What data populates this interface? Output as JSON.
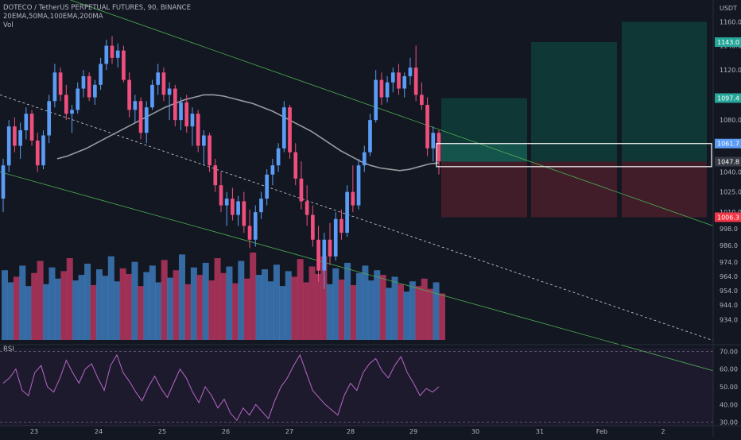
{
  "header": {
    "symbol_line": "DOTECO / TetherUS PERPETUAL FUTURES, 90, BINANCE",
    "indicators_line": "20EMA,50MA,100EMA,200MA",
    "volume_line": "Vol",
    "rsi_label": "RSI"
  },
  "price_axis": {
    "unit": "USDT",
    "ticks": [
      "1160.0",
      "1140.0",
      "1120.0",
      "1097.4",
      "1080.0",
      "1061.7",
      "1047.8",
      "1040.0",
      "1025.0",
      "1010.0",
      "1006.3",
      "998.0",
      "986.0",
      "974.0",
      "964.0",
      "954.0",
      "944.0",
      "934.0"
    ],
    "range": [
      930,
      1165
    ],
    "scale": "log"
  },
  "price_tags": [
    {
      "label": "1143.0",
      "value": 1143.0,
      "color": "#26a69a"
    },
    {
      "label": "1097.4",
      "value": 1097.4,
      "color": "#26a69a"
    },
    {
      "label": "1061.7",
      "value": 1061.7,
      "color": "#5b9cf6"
    },
    {
      "label": "1047.8",
      "value": 1047.8,
      "color": "#363a45"
    },
    {
      "label": "1006.3",
      "value": 1006.3,
      "color": "#f23645"
    }
  ],
  "rsi_axis": {
    "ticks": [
      "70.00",
      "60.00",
      "50.00",
      "40.00",
      "30.00"
    ],
    "range": [
      28,
      72
    ],
    "levels": [
      70,
      30
    ]
  },
  "time_axis": {
    "ticks": [
      "23",
      "24",
      "25",
      "26",
      "27",
      "28",
      "29",
      "30",
      "31",
      "Feb",
      "2"
    ]
  },
  "chart_data": {
    "type": "candlestick",
    "candles": [
      {
        "o": 1020,
        "h": 1050,
        "l": 1010,
        "c": 1045
      },
      {
        "o": 1045,
        "h": 1080,
        "l": 1040,
        "c": 1075
      },
      {
        "o": 1075,
        "h": 1082,
        "l": 1055,
        "c": 1060
      },
      {
        "o": 1060,
        "h": 1078,
        "l": 1050,
        "c": 1072
      },
      {
        "o": 1072,
        "h": 1090,
        "l": 1065,
        "c": 1085
      },
      {
        "o": 1085,
        "h": 1088,
        "l": 1060,
        "c": 1064
      },
      {
        "o": 1064,
        "h": 1070,
        "l": 1040,
        "c": 1045
      },
      {
        "o": 1045,
        "h": 1072,
        "l": 1042,
        "c": 1068
      },
      {
        "o": 1068,
        "h": 1100,
        "l": 1062,
        "c": 1095
      },
      {
        "o": 1095,
        "h": 1125,
        "l": 1090,
        "c": 1118
      },
      {
        "o": 1118,
        "h": 1122,
        "l": 1095,
        "c": 1100
      },
      {
        "o": 1100,
        "h": 1108,
        "l": 1080,
        "c": 1085
      },
      {
        "o": 1085,
        "h": 1092,
        "l": 1070,
        "c": 1088
      },
      {
        "o": 1088,
        "h": 1110,
        "l": 1085,
        "c": 1105
      },
      {
        "o": 1105,
        "h": 1120,
        "l": 1098,
        "c": 1115
      },
      {
        "o": 1115,
        "h": 1118,
        "l": 1095,
        "c": 1098
      },
      {
        "o": 1098,
        "h": 1112,
        "l": 1092,
        "c": 1108
      },
      {
        "o": 1108,
        "h": 1130,
        "l": 1104,
        "c": 1125
      },
      {
        "o": 1125,
        "h": 1145,
        "l": 1120,
        "c": 1140
      },
      {
        "o": 1140,
        "h": 1148,
        "l": 1125,
        "c": 1130
      },
      {
        "o": 1130,
        "h": 1142,
        "l": 1122,
        "c": 1136
      },
      {
        "o": 1136,
        "h": 1140,
        "l": 1110,
        "c": 1112
      },
      {
        "o": 1112,
        "h": 1118,
        "l": 1082,
        "c": 1088
      },
      {
        "o": 1088,
        "h": 1100,
        "l": 1078,
        "c": 1095
      },
      {
        "o": 1095,
        "h": 1098,
        "l": 1065,
        "c": 1070
      },
      {
        "o": 1070,
        "h": 1095,
        "l": 1062,
        "c": 1090
      },
      {
        "o": 1090,
        "h": 1112,
        "l": 1088,
        "c": 1108
      },
      {
        "o": 1108,
        "h": 1125,
        "l": 1100,
        "c": 1118
      },
      {
        "o": 1118,
        "h": 1122,
        "l": 1095,
        "c": 1100
      },
      {
        "o": 1100,
        "h": 1110,
        "l": 1080,
        "c": 1105
      },
      {
        "o": 1105,
        "h": 1108,
        "l": 1075,
        "c": 1080
      },
      {
        "o": 1080,
        "h": 1098,
        "l": 1072,
        "c": 1094
      },
      {
        "o": 1094,
        "h": 1100,
        "l": 1070,
        "c": 1075
      },
      {
        "o": 1075,
        "h": 1090,
        "l": 1060,
        "c": 1085
      },
      {
        "o": 1085,
        "h": 1088,
        "l": 1055,
        "c": 1060
      },
      {
        "o": 1060,
        "h": 1072,
        "l": 1045,
        "c": 1068
      },
      {
        "o": 1068,
        "h": 1070,
        "l": 1040,
        "c": 1045
      },
      {
        "o": 1045,
        "h": 1050,
        "l": 1025,
        "c": 1030
      },
      {
        "o": 1030,
        "h": 1040,
        "l": 1010,
        "c": 1015
      },
      {
        "o": 1015,
        "h": 1025,
        "l": 1000,
        "c": 1020
      },
      {
        "o": 1020,
        "h": 1028,
        "l": 1004,
        "c": 1008
      },
      {
        "o": 1008,
        "h": 1022,
        "l": 1000,
        "c": 1018
      },
      {
        "o": 1018,
        "h": 1025,
        "l": 995,
        "c": 1000
      },
      {
        "o": 1000,
        "h": 1012,
        "l": 984,
        "c": 990
      },
      {
        "o": 990,
        "h": 1015,
        "l": 985,
        "c": 1010
      },
      {
        "o": 1010,
        "h": 1025,
        "l": 1005,
        "c": 1020
      },
      {
        "o": 1020,
        "h": 1042,
        "l": 1015,
        "c": 1038
      },
      {
        "o": 1038,
        "h": 1050,
        "l": 1030,
        "c": 1045
      },
      {
        "o": 1045,
        "h": 1062,
        "l": 1040,
        "c": 1058
      },
      {
        "o": 1058,
        "h": 1095,
        "l": 1055,
        "c": 1090
      },
      {
        "o": 1090,
        "h": 1092,
        "l": 1050,
        "c": 1055
      },
      {
        "o": 1055,
        "h": 1062,
        "l": 1030,
        "c": 1035
      },
      {
        "o": 1035,
        "h": 1048,
        "l": 1012,
        "c": 1018
      },
      {
        "o": 1018,
        "h": 1030,
        "l": 1000,
        "c": 1008
      },
      {
        "o": 1008,
        "h": 1015,
        "l": 985,
        "c": 990
      },
      {
        "o": 990,
        "h": 1000,
        "l": 960,
        "c": 968
      },
      {
        "o": 968,
        "h": 995,
        "l": 955,
        "c": 990
      },
      {
        "o": 990,
        "h": 1002,
        "l": 972,
        "c": 978
      },
      {
        "o": 978,
        "h": 1010,
        "l": 975,
        "c": 1005
      },
      {
        "o": 1005,
        "h": 1012,
        "l": 990,
        "c": 995
      },
      {
        "o": 995,
        "h": 1030,
        "l": 992,
        "c": 1025
      },
      {
        "o": 1025,
        "h": 1045,
        "l": 1010,
        "c": 1015
      },
      {
        "o": 1015,
        "h": 1050,
        "l": 1012,
        "c": 1045
      },
      {
        "o": 1045,
        "h": 1060,
        "l": 1040,
        "c": 1055
      },
      {
        "o": 1055,
        "h": 1085,
        "l": 1052,
        "c": 1080
      },
      {
        "o": 1080,
        "h": 1120,
        "l": 1078,
        "c": 1112
      },
      {
        "o": 1112,
        "h": 1118,
        "l": 1092,
        "c": 1098
      },
      {
        "o": 1098,
        "h": 1115,
        "l": 1094,
        "c": 1110
      },
      {
        "o": 1110,
        "h": 1122,
        "l": 1102,
        "c": 1118
      },
      {
        "o": 1118,
        "h": 1125,
        "l": 1100,
        "c": 1105
      },
      {
        "o": 1105,
        "h": 1118,
        "l": 1098,
        "c": 1115
      },
      {
        "o": 1115,
        "h": 1130,
        "l": 1108,
        "c": 1122
      },
      {
        "o": 1122,
        "h": 1140,
        "l": 1095,
        "c": 1100
      },
      {
        "o": 1100,
        "h": 1110,
        "l": 1088,
        "c": 1092
      },
      {
        "o": 1092,
        "h": 1098,
        "l": 1052,
        "c": 1058
      },
      {
        "o": 1058,
        "h": 1075,
        "l": 1048,
        "c": 1070
      },
      {
        "o": 1070,
        "h": 1072,
        "l": 1038,
        "c": 1048
      }
    ],
    "ma_line": [
      1050,
      1052,
      1055,
      1058,
      1062,
      1066,
      1070,
      1074,
      1078,
      1082,
      1086,
      1090,
      1093,
      1096,
      1098,
      1100,
      1100,
      1099,
      1097,
      1095,
      1093,
      1090,
      1087,
      1083,
      1079,
      1075,
      1071,
      1066,
      1061,
      1056,
      1052,
      1048,
      1045,
      1043,
      1042,
      1041,
      1042,
      1044,
      1046,
      1047
    ],
    "volume": [
      75,
      62,
      68,
      80,
      58,
      72,
      85,
      60,
      78,
      66,
      74,
      88,
      64,
      70,
      82,
      59,
      76,
      69,
      90,
      63,
      77,
      71,
      84,
      58,
      73,
      80,
      62,
      86,
      67,
      75,
      92,
      60,
      78,
      70,
      83,
      64,
      88,
      72,
      79,
      61,
      85,
      66,
      94,
      70,
      76,
      63,
      81,
      58,
      74,
      68,
      87,
      62,
      79,
      71,
      90,
      60,
      77,
      65,
      83,
      59,
      72,
      80,
      64,
      75,
      70,
      56,
      68,
      60,
      52,
      63,
      58,
      66,
      55,
      62,
      50
    ],
    "rsi": [
      52,
      55,
      60,
      48,
      45,
      58,
      62,
      50,
      47,
      55,
      65,
      58,
      52,
      60,
      63,
      55,
      48,
      62,
      68,
      58,
      53,
      47,
      42,
      50,
      56,
      49,
      44,
      52,
      60,
      55,
      47,
      41,
      50,
      45,
      38,
      43,
      35,
      31,
      38,
      34,
      40,
      36,
      32,
      42,
      50,
      55,
      62,
      68,
      58,
      48,
      44,
      40,
      37,
      34,
      45,
      52,
      48,
      58,
      63,
      66,
      59,
      55,
      62,
      67,
      58,
      52,
      45,
      49,
      47,
      50
    ],
    "trend_lines": [
      {
        "style": "solid",
        "color": "#4caf50",
        "from": [
          0,
          1200
        ],
        "to": [
          1,
          1000
        ]
      },
      {
        "style": "dashed",
        "color": "#d1d4dc",
        "from": [
          0,
          1100
        ],
        "to": [
          1,
          920
        ]
      },
      {
        "style": "solid",
        "color": "#4caf50",
        "from": [
          0,
          1040
        ],
        "to": [
          1,
          900
        ]
      }
    ],
    "position_zones": [
      {
        "entry": 1047.8,
        "target": 1097.4,
        "stop": 1006.3
      },
      {
        "entry": 1047.8,
        "target": 1143.0,
        "stop": 1006.3
      },
      {
        "entry": 1047.8,
        "target": 1160.0,
        "stop": 1006.3
      }
    ],
    "highlight_range": [
      1044,
      1061.7
    ]
  },
  "colors": {
    "bull": "#5b9cf6",
    "bear": "#ef4f7d",
    "vol_bull": "#3d79b8",
    "vol_bear": "#b5355e",
    "ma": "#9a9ba0",
    "rsi": "#b668c4",
    "target_zone": "#0f3d3a",
    "stop_zone": "#4a1f2b"
  }
}
